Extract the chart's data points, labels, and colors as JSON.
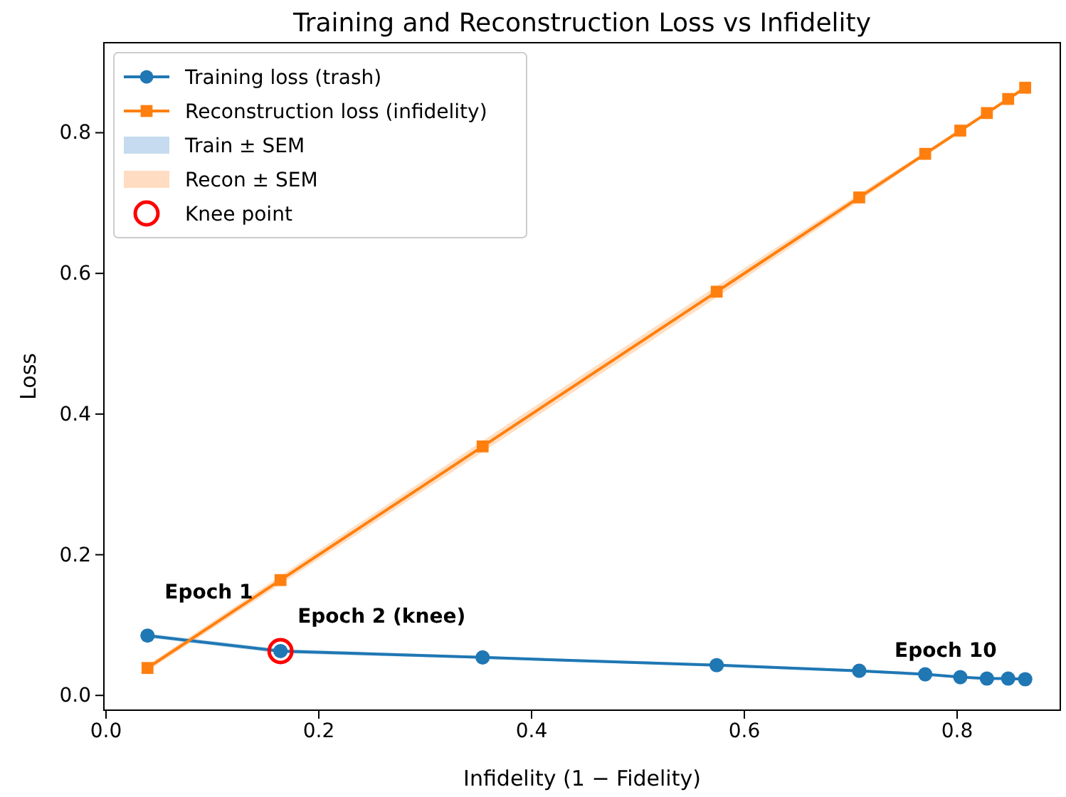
{
  "chart_data": {
    "type": "line",
    "title": "Training and Reconstruction Loss vs Infidelity",
    "xlabel": "Infidelity (1 − Fidelity)",
    "ylabel": "Loss",
    "xlim": [
      -0.002,
      0.897
    ],
    "ylim": [
      -0.021,
      0.928
    ],
    "xticks": [
      {
        "value": 0,
        "label": "0.0"
      },
      0.2,
      0.4,
      0.6,
      0.8
    ],
    "yticks": [
      {
        "value": 0,
        "label": "0.0"
      },
      0.2,
      0.4,
      0.6,
      0.8
    ],
    "grid": false,
    "legend": "top left",
    "series": [
      {
        "name": "Training loss (trash)",
        "marker": "circle",
        "color": "#1f77b4",
        "x": [
          0.039,
          0.164,
          0.354,
          0.574,
          0.708,
          0.77,
          0.803,
          0.828,
          0.848,
          0.864
        ],
        "values": [
          0.085,
          0.063,
          0.054,
          0.043,
          0.035,
          0.03,
          0.026,
          0.024,
          0.024,
          0.023
        ],
        "lower": [
          0.082,
          0.06,
          0.052,
          0.041,
          0.033,
          0.028,
          0.025,
          0.023,
          0.023,
          0.022
        ],
        "upper": [
          0.088,
          0.066,
          0.056,
          0.045,
          0.037,
          0.032,
          0.027,
          0.025,
          0.025,
          0.024
        ]
      },
      {
        "name": "Reconstruction loss (infidelity)",
        "marker": "square",
        "color": "#ff7f0e",
        "x": [
          0.039,
          0.164,
          0.354,
          0.574,
          0.708,
          0.77,
          0.803,
          0.828,
          0.848,
          0.864
        ],
        "values": [
          0.039,
          0.164,
          0.354,
          0.574,
          0.708,
          0.77,
          0.803,
          0.828,
          0.848,
          0.864
        ],
        "lower": [
          0.035,
          0.158,
          0.346,
          0.566,
          0.703,
          0.767,
          0.8,
          0.826,
          0.846,
          0.862
        ],
        "upper": [
          0.043,
          0.17,
          0.362,
          0.582,
          0.713,
          0.773,
          0.806,
          0.83,
          0.85,
          0.866
        ]
      },
      {
        "name": "Train ± SEM",
        "type": "area",
        "color": "#c6dbef",
        "values": [
          null
        ]
      },
      {
        "name": "Recon ± SEM",
        "type": "area",
        "color": "#ffdcc2",
        "values": [
          null
        ]
      },
      {
        "name": "Knee point",
        "type": "scatter",
        "marker": "circle",
        "color": "#ff0000",
        "x": [
          0.164
        ],
        "values": [
          0.063
        ]
      }
    ],
    "annotations": [
      {
        "text": "Epoch 1",
        "x": 0.039,
        "y": 0.085
      },
      {
        "text": "Epoch 2 (knee)",
        "x": 0.164,
        "y": 0.063
      },
      {
        "text": "Epoch 10",
        "x": 0.864,
        "y": 0.023
      }
    ]
  }
}
